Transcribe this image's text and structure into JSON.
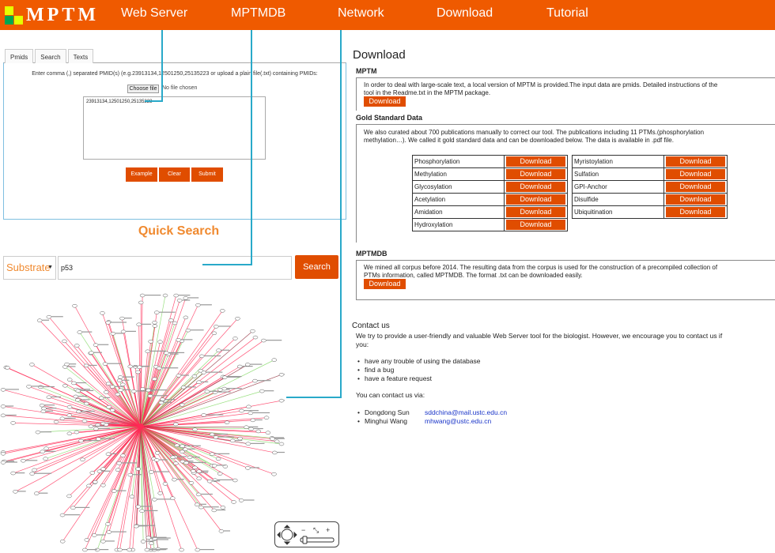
{
  "header": {
    "logo_text": "MPTM",
    "logo_colors": [
      "#e6ff00",
      "#ef5a00",
      "#00a651",
      "#e6ff00"
    ],
    "nav": [
      "Web Server",
      "MPTMDB",
      "Network",
      "Download",
      "Tutorial"
    ]
  },
  "left": {
    "tabs": [
      "Pmids",
      "Search",
      "Texts"
    ],
    "instruction": "Enter comma (,) separated PMID(s) (e.g.23913134,12501250,25135223 or upload a plain file(.txt) containing PMIDs:",
    "choose_file_label": "Choose file",
    "no_file_text": "No file chosen",
    "textarea_value": "23913134,12501250,25135223",
    "buttons": [
      "Example",
      "Clear",
      "Submit"
    ],
    "quick_search_title": "Quick Search",
    "substrate_value": "Substrate",
    "search_value": "p53",
    "search_button": "Search"
  },
  "download": {
    "title": "Download",
    "mptm": {
      "title": "MPTM",
      "text_line1": "In order to deal with large-scale text, a local version of MPTM is provided.The input data are pmids. Detailed instructions of the",
      "text_line2": "tool in the Readme.txt in the MPTM package.",
      "button": "Download"
    },
    "gold": {
      "title": "Gold Standard Data",
      "text_line1": "We also curated about 700 publications manually to correct our tool. The publications including 11 PTMs.(phosphorylation",
      "text_line2": "methylation…). We called it gold standard data and can be downloaded below. The data is available in .pdf file.",
      "left_rows": [
        "Phosphorylation",
        "Methylation",
        "Glycosylation",
        "Acetylation",
        "Amidation",
        "Hydroxylation"
      ],
      "right_rows": [
        "Myristoylation",
        "Sulfation",
        "GPI-Anchor",
        "Disulfide",
        "Ubiquitination"
      ],
      "button": "Download"
    },
    "mptmdb": {
      "title": "MPTMDB",
      "text_line1": "We mined all corpus before 2014. The resulting data from the corpus is used for the construction of a precompiled collection of",
      "text_line2": "PTMs information, called MPTMDB. The format .txt can be downloaded easily.",
      "button": "Download"
    }
  },
  "contact": {
    "title": "Contact us",
    "intro_line1": "We try to provide a user-friendly and valuable Web Server tool for the biologist. However, we encourage you to contact us if",
    "intro_line2": "you:",
    "reasons": [
      "have any trouble of using the database",
      "find a bug",
      "have a feature request"
    ],
    "via": "You can contact us via:",
    "people": [
      {
        "name": "Dongdong Sun",
        "email": "sddchina@mail.ustc.edu.cn"
      },
      {
        "name": "Minghui Wang",
        "email": "mhwang@ustc.edu.cn"
      }
    ]
  },
  "colors": {
    "brand": "#ef5a00",
    "button": "#e04d00",
    "accent_orange": "#f08a30",
    "connector": "#29a9c9",
    "edge_main": "#ff2a55",
    "edge_alt": "#7fd860",
    "edge_dark": "#8a2030"
  },
  "icons": [
    "pan-icon",
    "zoom-out-icon",
    "zoom-in-icon",
    "fit-icon",
    "zoom-slider"
  ]
}
